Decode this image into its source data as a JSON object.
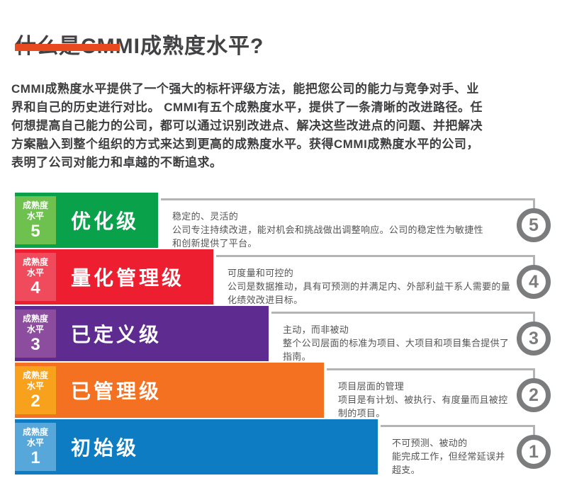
{
  "header": {
    "title": "什么是CMMI成熟度水平?",
    "underline_color": "#e84a1f",
    "intro": "CMMI成熟度水平提供了一个强大的标杆评级方法，能把您公司的能力与竞争对手、业\n界和自己的历史进行对比。 CMMI有五个成熟度水平，提供了一条清晰的改进路径。任\n何想提高自己能力的公司，都可以通过识别改进点、解决这些改进点的问题、并把解决\n方案融入到整个组织的方式来达到更高的成熟度水平。获得CMMI成熟度水平的公司，\n表明了公司对能力和卓越的不断追求。"
  },
  "labels": {
    "maturity_line1": "成熟度",
    "maturity_line2": "水平"
  },
  "palette": {
    "connector": "#b4b4b6",
    "badge": "#7a7c7e",
    "desc_text": "#545456"
  },
  "levels": [
    {
      "number": "5",
      "name": "优化级",
      "label_bg": "#6ec04f",
      "bar_bg": "#0aa14b",
      "desc": "稳定的、灵活的\n公司专注持续改进，能对机会和挑战做出调整响应。公司的稳定性为敏捷性\n和创新提供了平台。"
    },
    {
      "number": "4",
      "name": "量化管理级",
      "label_bg": "#f04b5c",
      "bar_bg": "#ed1e30",
      "desc": "可度量和可控的\n公司是数据推动，具有可预测的并满足内、外部利益干系人需要的量\n化绩效改进目标。"
    },
    {
      "number": "3",
      "name": "已定义级",
      "label_bg": "#8d4d9e",
      "bar_bg": "#5e2c90",
      "desc": "主动，而非被动\n整个公司层面的标准为项目、大项目和项目集合提供了\n指南。"
    },
    {
      "number": "2",
      "name": "已管理级",
      "label_bg": "#f7a11d",
      "bar_bg": "#f37121",
      "desc": "项目层面的管理\n项目是有计划、被执行、有度量而且被控\n制的项目。"
    },
    {
      "number": "1",
      "name": "初始级",
      "label_bg": "#57a7db",
      "bar_bg": "#0d7cc2",
      "desc": "不可预测、被动的\n能完成工作，但经常延误并\n超支。"
    }
  ]
}
